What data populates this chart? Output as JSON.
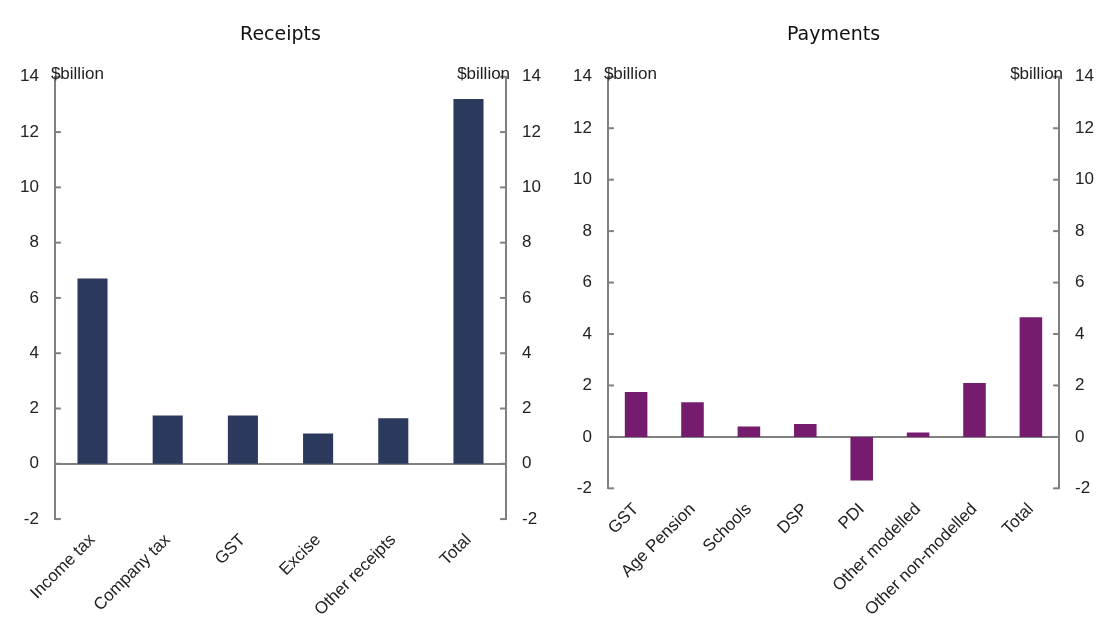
{
  "chart_data": [
    {
      "type": "bar",
      "title": "Receipts",
      "ylabel": "$billion",
      "y2label": "$billion",
      "categories": [
        "Income tax",
        "Company tax",
        "GST",
        "Excise",
        "Other receipts",
        "Total"
      ],
      "series": [
        {
          "color": "#2b3a5c",
          "values": [
            6.7,
            1.75,
            1.75,
            1.1,
            1.65,
            13.2
          ]
        }
      ],
      "ylim": [
        -2,
        14
      ],
      "yticks": [
        -2,
        0,
        2,
        4,
        6,
        8,
        10,
        12,
        14
      ],
      "y2lim": [
        -2,
        14
      ],
      "y2ticks": [
        -2,
        0,
        2,
        4,
        6,
        8,
        10,
        12,
        14
      ],
      "legend": false
    },
    {
      "type": "bar",
      "title": "Payments",
      "ylabel": "$billion",
      "y2label": "$billion",
      "categories": [
        "GST",
        "Age Pension",
        "Schools",
        "DSP",
        "PDI",
        "Other modelled",
        "Other non-modelled",
        "Total"
      ],
      "series": [
        {
          "color": "#761c6e",
          "values": [
            1.75,
            1.35,
            0.4,
            0.5,
            -1.7,
            0.17,
            2.1,
            4.65
          ]
        }
      ],
      "ylim": [
        -2,
        14
      ],
      "yticks": [
        -2,
        0,
        2,
        4,
        6,
        8,
        10,
        12,
        14
      ],
      "y2lim": [
        -2,
        14
      ],
      "y2ticks": [
        -2,
        0,
        2,
        4,
        6,
        8,
        10,
        12,
        14
      ],
      "legend": false
    }
  ]
}
